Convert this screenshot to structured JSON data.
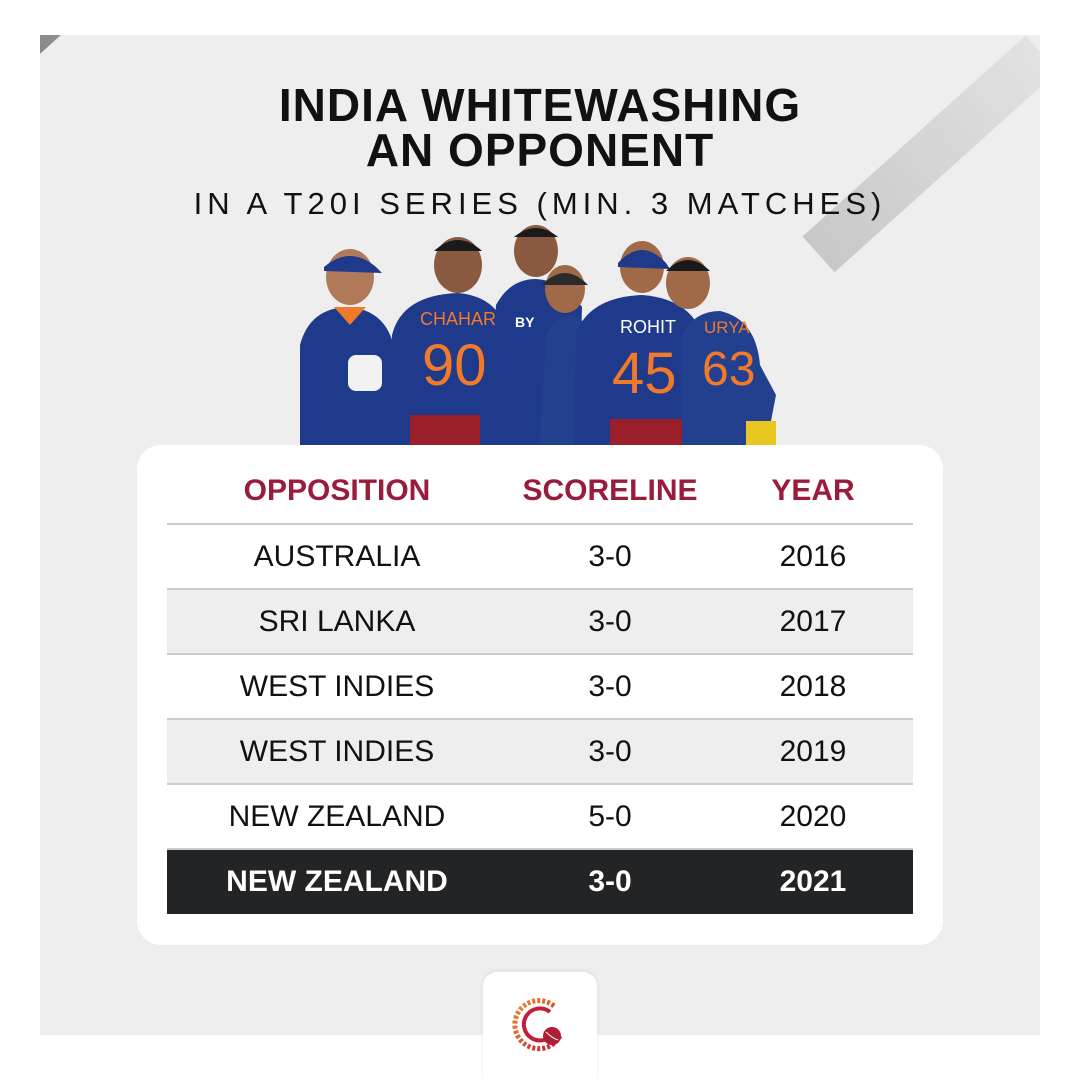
{
  "title_line1": "INDIA WHITEWASHING",
  "title_line2": "AN OPPONENT",
  "subtitle": "IN A T20I SERIES (MIN. 3 MATCHES)",
  "jerseys": {
    "p1": {
      "name": "CHAHAR",
      "number": "90"
    },
    "p2": {
      "name": "ROHIT",
      "number": "45"
    },
    "p3": {
      "name": "URYA",
      "number": "63"
    }
  },
  "table": {
    "headers": [
      "OPPOSITION",
      "SCORELINE",
      "YEAR"
    ],
    "rows": [
      [
        "AUSTRALIA",
        "3-0",
        "2016"
      ],
      [
        "SRI LANKA",
        "3-0",
        "2017"
      ],
      [
        "WEST INDIES",
        "3-0",
        "2018"
      ],
      [
        "WEST INDIES",
        "3-0",
        "2019"
      ],
      [
        "NEW ZEALAND",
        "5-0",
        "2020"
      ],
      [
        "NEW ZEALAND",
        "3-0",
        "2021"
      ]
    ],
    "highlighted_row": 5
  },
  "colors": {
    "accent": "#9b1b3b",
    "highlight_bg": "#232426",
    "jersey_blue": "#1f3a8a",
    "jersey_orange": "#f07a2a"
  },
  "logo_icon": "cricket-ball-logo-icon"
}
